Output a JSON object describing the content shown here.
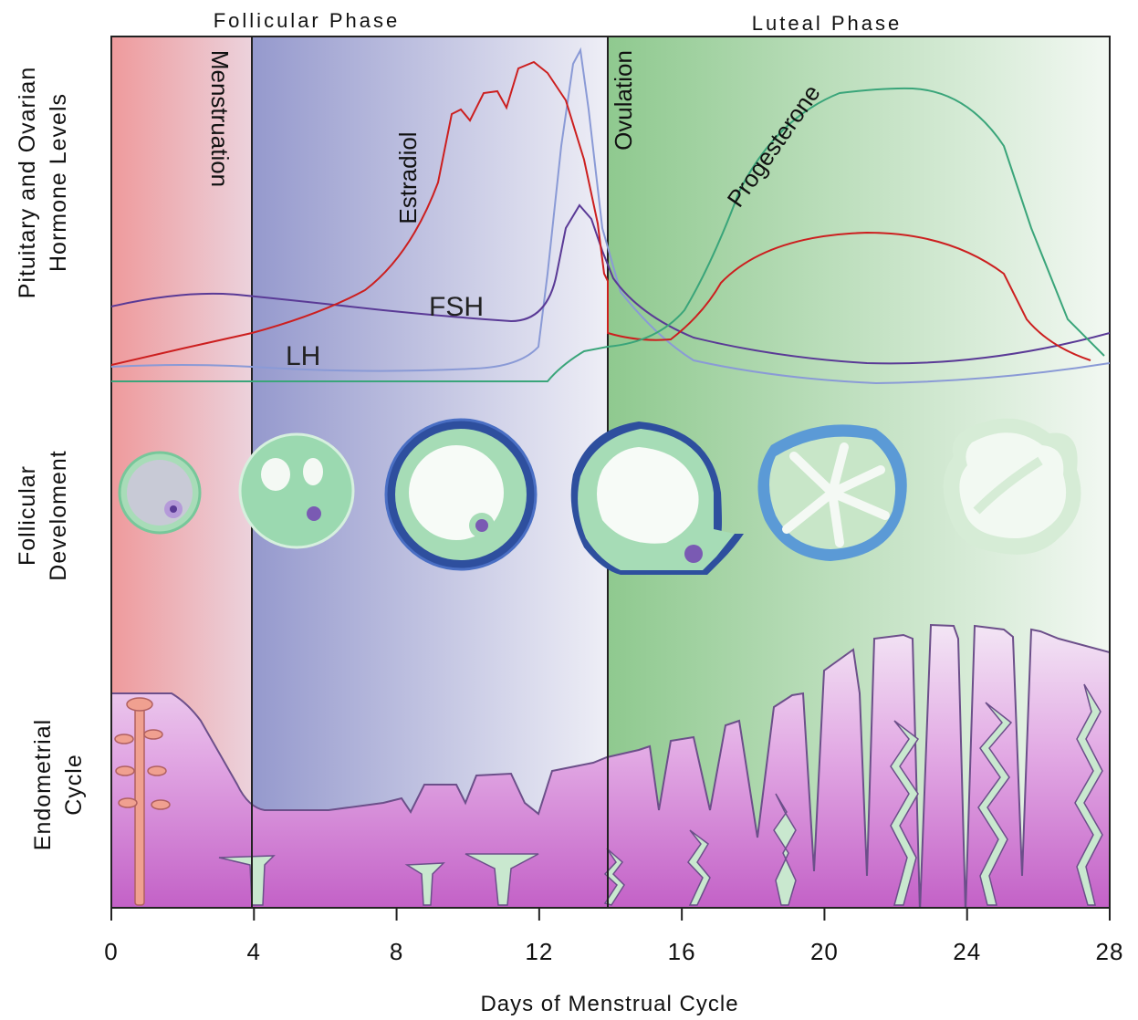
{
  "phases": {
    "follicular": "Follicular Phase",
    "luteal": "Luteal Phase"
  },
  "section_labels": {
    "hormone_line1": "Pituitary and Ovarian",
    "hormone_line2": "Hormone Levels",
    "follicular_line1": "Follicular",
    "follicular_line2": "Develoment",
    "endometrial_line1": "Endometrial",
    "endometrial_line2": "Cycle"
  },
  "region_labels": {
    "menstruation": "Menstruation",
    "ovulation": "Ovulation"
  },
  "hormones": {
    "estradiol": "Estradiol",
    "progesterone": "Progesterone",
    "fsh": "FSH",
    "lh": "LH"
  },
  "x_axis": {
    "title": "Days of Menstrual Cycle",
    "ticks": [
      "0",
      "4",
      "8",
      "12",
      "16",
      "20",
      "24",
      "28"
    ]
  },
  "colors": {
    "menstruation": "#ee9a9c",
    "follicular": "#9b9fd0",
    "luteal": "#8fc98f",
    "estradiol": "#cc1f1f",
    "progesterone": "#3aa57a",
    "fsh": "#5a3a96",
    "lh": "#8a9ad6",
    "endometrium": "#c66fcc"
  }
}
